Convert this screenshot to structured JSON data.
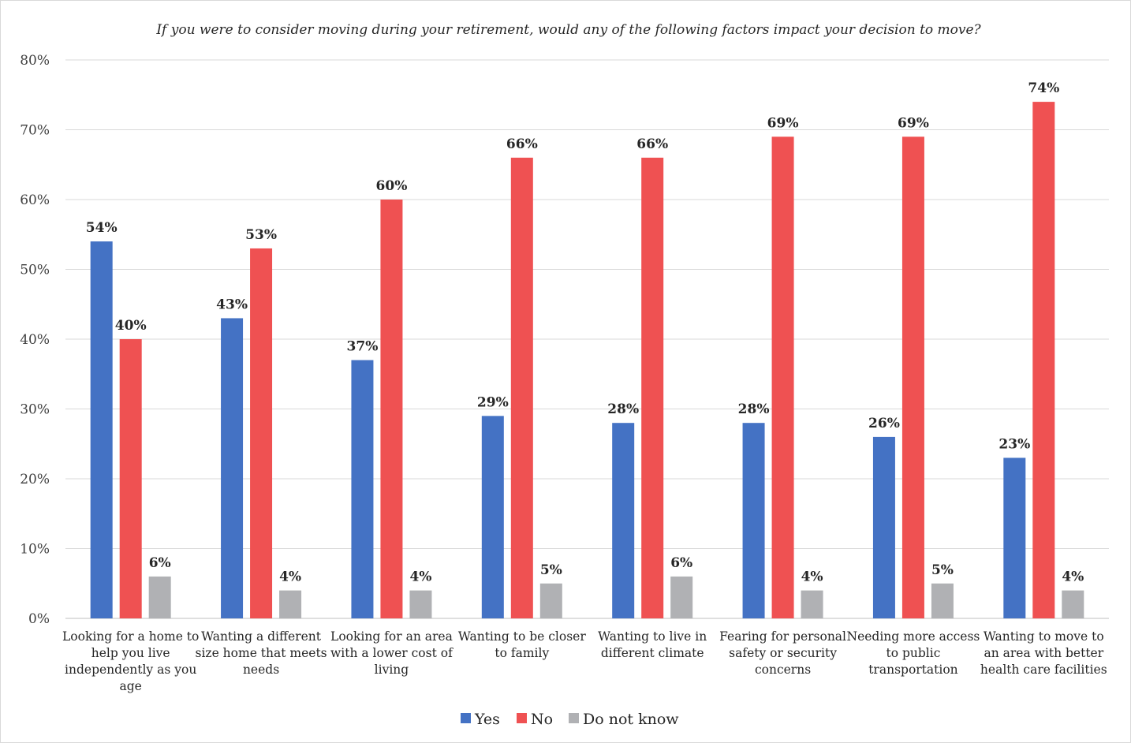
{
  "chart_data": {
    "type": "bar",
    "title": "If you were to consider moving during your retirement, would any of the following factors impact your decision to move?",
    "xlabel": "",
    "ylabel": "",
    "ylim": [
      0,
      80
    ],
    "y_ticks": [
      "0%",
      "10%",
      "20%",
      "30%",
      "40%",
      "50%",
      "60%",
      "70%",
      "80%"
    ],
    "grid": true,
    "legend_position": "bottom",
    "categories": [
      [
        "Looking for a home to",
        "help you live",
        "independently as you",
        "age"
      ],
      [
        "Wanting a different",
        "size home that meets",
        "needs"
      ],
      [
        "Looking for an area",
        "with a lower cost of",
        "living"
      ],
      [
        "Wanting to be closer",
        "to family"
      ],
      [
        "Wanting to live in",
        "different climate"
      ],
      [
        "Fearing for personal",
        "safety or security",
        "concerns"
      ],
      [
        "Needing more access",
        "to public",
        "transportation"
      ],
      [
        "Wanting to move to",
        "an area with better",
        "health care facilities"
      ]
    ],
    "series": [
      {
        "name": "Yes",
        "color": "#4472c4",
        "values": [
          54,
          43,
          37,
          29,
          28,
          28,
          26,
          23
        ],
        "labels": [
          "54%",
          "43%",
          "37%",
          "29%",
          "28%",
          "28%",
          "26%",
          "23%"
        ]
      },
      {
        "name": "No",
        "color": "#ef5152",
        "values": [
          40,
          53,
          60,
          66,
          66,
          69,
          69,
          74
        ],
        "labels": [
          "40%",
          "53%",
          "60%",
          "66%",
          "66%",
          "69%",
          "69%",
          "74%"
        ]
      },
      {
        "name": "Do not know",
        "color": "#b0b1b4",
        "values": [
          6,
          4,
          4,
          5,
          6,
          4,
          5,
          4
        ],
        "labels": [
          "6%",
          "4%",
          "4%",
          "5%",
          "6%",
          "4%",
          "5%",
          "4%"
        ]
      }
    ]
  }
}
